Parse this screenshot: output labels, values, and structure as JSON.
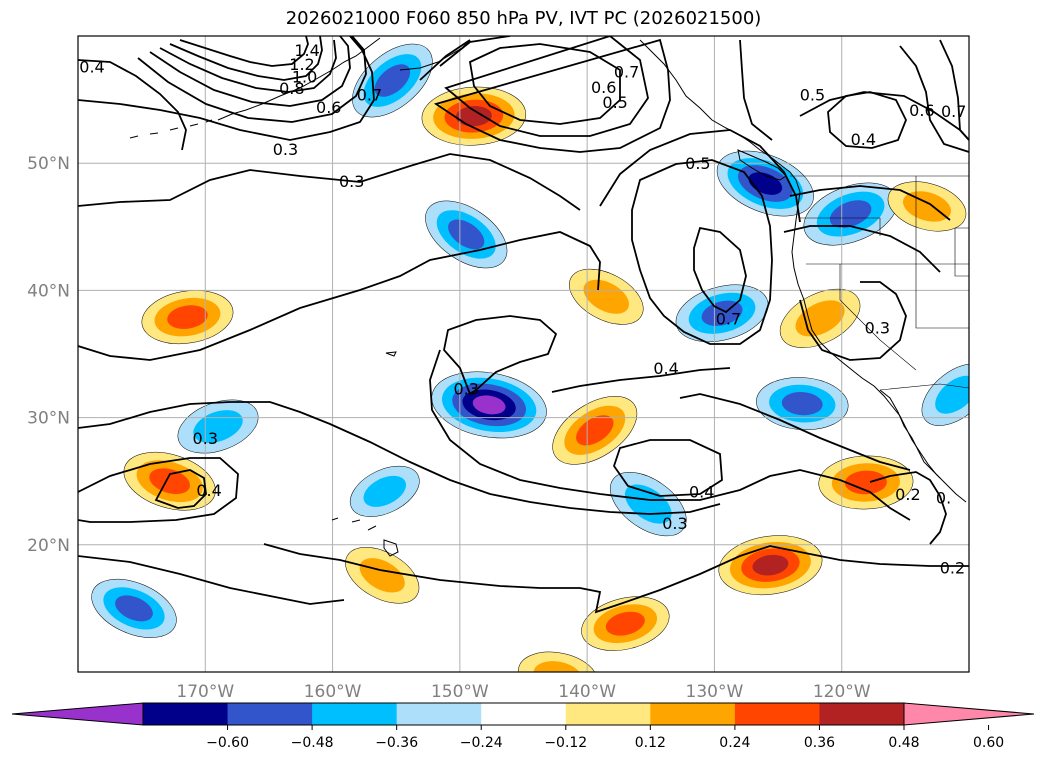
{
  "figure": {
    "title": "2026021000 F060 850 hPa PV, IVT PC (2026021500)"
  },
  "map": {
    "lon_range": [
      -180,
      -110
    ],
    "lat_range": [
      10,
      60
    ],
    "gridlines": true,
    "lon_ticks": [
      {
        "value": -170,
        "label": "170°W"
      },
      {
        "value": -160,
        "label": "160°W"
      },
      {
        "value": -150,
        "label": "150°W"
      },
      {
        "value": -140,
        "label": "140°W"
      },
      {
        "value": -130,
        "label": "130°W"
      },
      {
        "value": -120,
        "label": "120°W"
      }
    ],
    "lat_ticks": [
      {
        "value": 20,
        "label": "20°N"
      },
      {
        "value": 30,
        "label": "30°N"
      },
      {
        "value": 40,
        "label": "40°N"
      },
      {
        "value": 50,
        "label": "50°N"
      }
    ],
    "tick_label_color": "#808080"
  },
  "pv_contour_labels": [
    {
      "text": "1.4",
      "lon": -162,
      "lat": 58.9
    },
    {
      "text": "1.2",
      "lon": -162.4,
      "lat": 57.8
    },
    {
      "text": "1.0",
      "lon": -162.2,
      "lat": 56.8
    },
    {
      "text": "0.8",
      "lon": -163.2,
      "lat": 55.9
    },
    {
      "text": "0.6",
      "lon": -160.3,
      "lat": 54.4
    },
    {
      "text": "0.7",
      "lon": -157.1,
      "lat": 55.4
    },
    {
      "text": "0.4",
      "lon": -178.9,
      "lat": 57.6
    },
    {
      "text": "0.3",
      "lon": -163.7,
      "lat": 51.1
    },
    {
      "text": "0.3",
      "lon": -158.5,
      "lat": 48.6
    },
    {
      "text": "0.7",
      "lon": -136.9,
      "lat": 57.2
    },
    {
      "text": "0.6",
      "lon": -138.7,
      "lat": 56.0
    },
    {
      "text": "0.5",
      "lon": -137.8,
      "lat": 54.8
    },
    {
      "text": "0.5",
      "lon": -131.3,
      "lat": 50.0
    },
    {
      "text": "0.5",
      "lon": -122.3,
      "lat": 55.4
    },
    {
      "text": "0.4",
      "lon": -118.3,
      "lat": 51.9
    },
    {
      "text": "0.6",
      "lon": -113.7,
      "lat": 54.2
    },
    {
      "text": "0.7",
      "lon": -111.2,
      "lat": 54.1
    },
    {
      "text": "0.7",
      "lon": -128.9,
      "lat": 37.8
    },
    {
      "text": "0.3",
      "lon": -117.2,
      "lat": 37.1
    },
    {
      "text": "0.3",
      "lon": -149.5,
      "lat": 32.3
    },
    {
      "text": "0.4",
      "lon": -133.8,
      "lat": 33.9
    },
    {
      "text": "0.3",
      "lon": -170.0,
      "lat": 28.4
    },
    {
      "text": "0.4",
      "lon": -169.7,
      "lat": 24.3
    },
    {
      "text": "0.4",
      "lon": -131.0,
      "lat": 24.2
    },
    {
      "text": "0.3",
      "lon": -133.1,
      "lat": 21.7
    },
    {
      "text": "0.2",
      "lon": -114.8,
      "lat": 24.0
    },
    {
      "text": "0.2",
      "lon": -111.3,
      "lat": 18.2
    },
    {
      "text": "0.",
      "lon": -112.0,
      "lat": 23.7
    }
  ],
  "ivt_pc_features": [
    {
      "name": "negative-anomaly-northwest-pacific",
      "lon": -155.3,
      "lat": 56.5,
      "value": -0.42
    },
    {
      "name": "positive-anomaly-gulf-of-alaska-west",
      "lon": -148.9,
      "lat": 53.7,
      "value": 0.5
    },
    {
      "name": "negative-anomaly-north-central-pacific",
      "lon": -149.5,
      "lat": 44.4,
      "value": -0.4
    },
    {
      "name": "positive-anomaly-central-pacific",
      "lon": -171.4,
      "lat": 37.9,
      "value": 0.4
    },
    {
      "name": "positive-anomaly-off-california-north",
      "lon": -138.5,
      "lat": 39.5,
      "value": 0.3
    },
    {
      "name": "negative-anomaly-off-california",
      "lon": -129.4,
      "lat": 38.2,
      "value": -0.42
    },
    {
      "name": "negative-anomaly-pacific-northwest",
      "lon": -126.0,
      "lat": 48.4,
      "value": -0.48
    },
    {
      "name": "negative-anomaly-british-columbia-coast",
      "lon": -119.3,
      "lat": 46.0,
      "value": -0.45
    },
    {
      "name": "positive-anomaly-oregon-inland",
      "lon": -113.3,
      "lat": 46.6,
      "value": 0.3
    },
    {
      "name": "positive-anomaly-california-coast",
      "lon": -121.7,
      "lat": 37.8,
      "value": 0.35
    },
    {
      "name": "negative-anomaly-subtropical-band",
      "lon": -147.7,
      "lat": 31.0,
      "value": -0.6
    },
    {
      "name": "positive-anomaly-subtropical-band",
      "lon": -139.4,
      "lat": 29.0,
      "value": 0.42
    },
    {
      "name": "negative-anomaly-baja-west",
      "lon": -123.1,
      "lat": 31.1,
      "value": -0.4
    },
    {
      "name": "negative-anomaly-mexico-edge",
      "lon": -111.0,
      "lat": 31.8,
      "value": -0.3
    },
    {
      "name": "positive-anomaly-baja-south",
      "lon": -118.1,
      "lat": 24.9,
      "value": 0.42
    },
    {
      "name": "negative-anomaly-near-hawaii-east",
      "lon": -135.2,
      "lat": 23.2,
      "value": -0.35
    },
    {
      "name": "positive-anomaly-tropical-east",
      "lon": -125.6,
      "lat": 18.4,
      "value": 0.5
    },
    {
      "name": "positive-anomaly-hawaii",
      "lon": -156.1,
      "lat": 17.6,
      "value": 0.3
    },
    {
      "name": "positive-anomaly-tropical-central",
      "lon": -137.0,
      "lat": 13.8,
      "value": 0.38
    },
    {
      "name": "negative-anomaly-west-tropical",
      "lon": -175.6,
      "lat": 15.0,
      "value": -0.38
    },
    {
      "name": "negative-anomaly-west-subtropical",
      "lon": -169.0,
      "lat": 29.3,
      "value": -0.33
    },
    {
      "name": "positive-anomaly-west-subtropical",
      "lon": -172.8,
      "lat": 25.0,
      "value": 0.42
    },
    {
      "name": "negative-anomaly-small-near-hawaii",
      "lon": -155.9,
      "lat": 24.2,
      "value": -0.25
    },
    {
      "name": "positive-anomaly-bottom-edge",
      "lon": -142.3,
      "lat": 9.7,
      "value": 0.3
    }
  ],
  "colorbar": {
    "tick_labels": [
      "−0.60",
      "−0.48",
      "−0.36",
      "−0.24",
      "−0.12",
      "0.12",
      "0.24",
      "0.36",
      "0.48",
      "0.60"
    ],
    "colors": [
      "#9932CC",
      "#00008B",
      "#3355CC",
      "#00BFFF",
      "#ADDFFA",
      "#FFFFFF",
      "#FFE880",
      "#FFA500",
      "#FF4500",
      "#B22222",
      "#FF88AA"
    ]
  }
}
